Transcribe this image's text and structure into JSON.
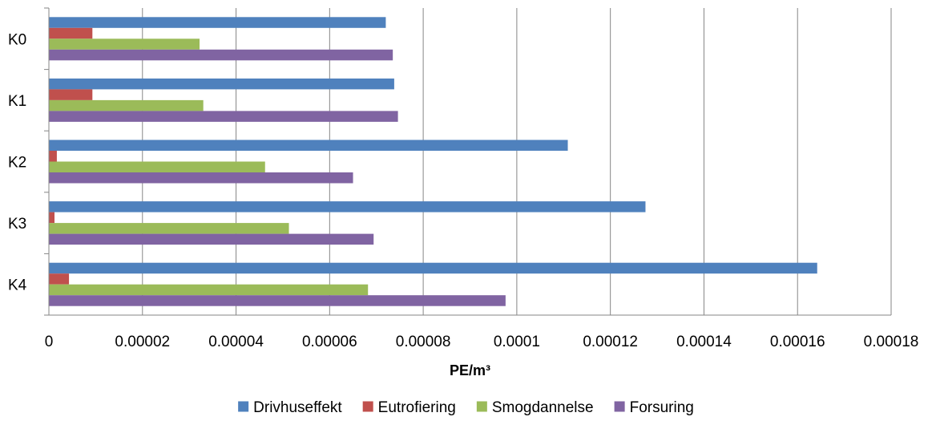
{
  "chart_data": {
    "type": "bar",
    "orientation": "horizontal",
    "categories": [
      "K0",
      "K1",
      "K2",
      "K3",
      "K4"
    ],
    "series": [
      {
        "name": "Drivhuseffekt",
        "color": "#4f81bd",
        "values": [
          7.2e-05,
          7.38e-05,
          0.0001109,
          0.0001275,
          0.0001642
        ]
      },
      {
        "name": "Eutrofiering",
        "color": "#c0504d",
        "values": [
          9.3e-06,
          9.3e-06,
          1.7e-06,
          1.2e-06,
          4.3e-06
        ]
      },
      {
        "name": "Smogdannelse",
        "color": "#9bbb59",
        "values": [
          3.22e-05,
          3.3e-05,
          4.62e-05,
          5.13e-05,
          6.82e-05
        ]
      },
      {
        "name": "Forsuring",
        "color": "#8064a2",
        "values": [
          7.35e-05,
          7.46e-05,
          6.5e-05,
          6.94e-05,
          9.76e-05
        ]
      }
    ],
    "xlabel": "PE/m³",
    "xlim": [
      0,
      0.00018
    ],
    "xticks": [
      0,
      2e-05,
      4e-05,
      6e-05,
      8e-05,
      0.0001,
      0.00012,
      0.00014,
      0.00016,
      0.00018
    ],
    "xtick_labels": [
      "0",
      "0.00002",
      "0.00004",
      "0.00006",
      "0.00008",
      "0.0001",
      "0.00012",
      "0.00014",
      "0.00016",
      "0.00018"
    ],
    "grid": true,
    "legend_position": "bottom"
  }
}
